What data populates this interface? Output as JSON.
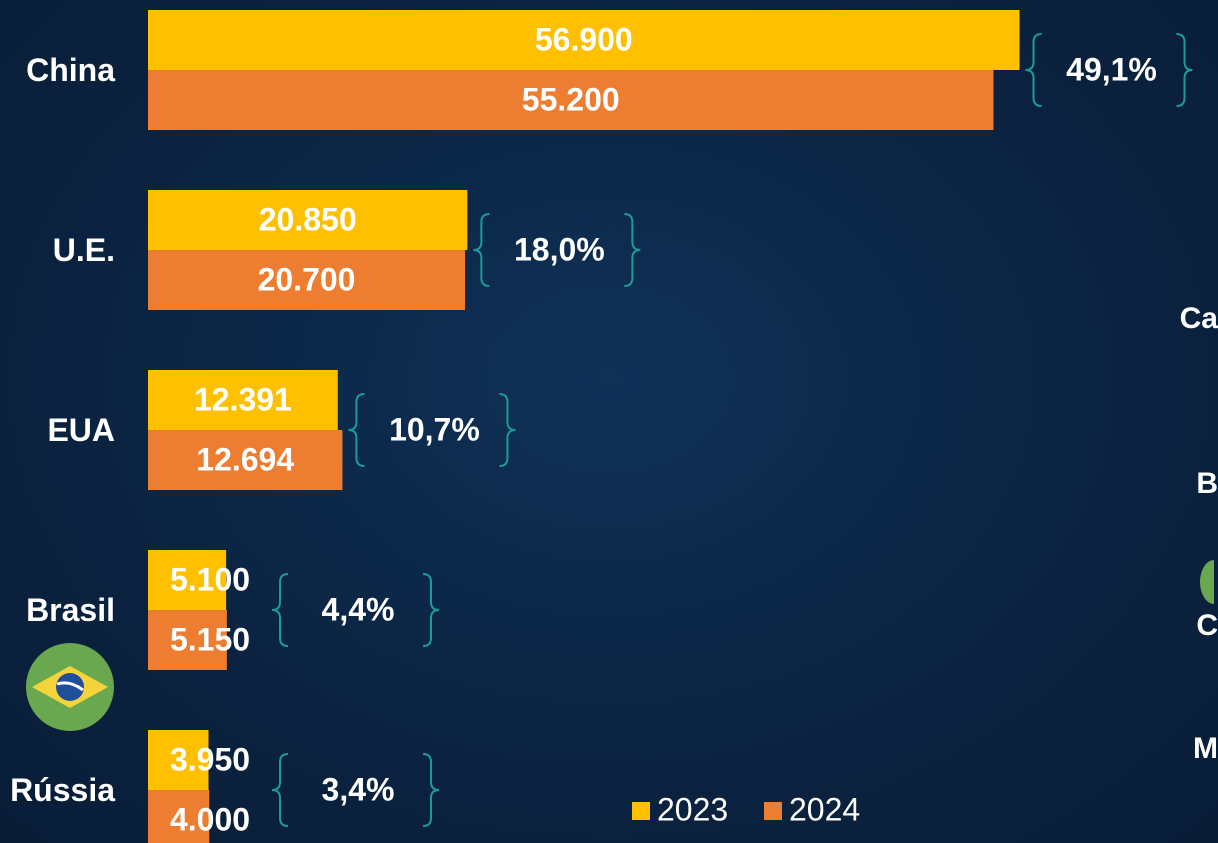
{
  "chart_data": {
    "type": "bar",
    "orientation": "horizontal",
    "categories": [
      "China",
      "U.E.",
      "EUA",
      "Brasil",
      "Rússia"
    ],
    "series": [
      {
        "name": "2023",
        "color": "#FFC000",
        "values": [
          56900,
          20850,
          12391,
          5100,
          3950
        ],
        "value_labels": [
          "56.900",
          "20.850",
          "12.391",
          "5.100",
          "3.950"
        ]
      },
      {
        "name": "2024",
        "color": "#ED7D31",
        "values": [
          55200,
          20700,
          12694,
          5150,
          4000
        ],
        "value_labels": [
          "55.200",
          "20.700",
          "12.694",
          "5.150",
          "4.000"
        ]
      }
    ],
    "shares": [
      {
        "value": 49.1,
        "label": "49,1%"
      },
      {
        "value": 18.0,
        "label": "18,0%"
      },
      {
        "value": 10.7,
        "label": "10,7%"
      },
      {
        "value": 4.4,
        "label": "4,4%"
      },
      {
        "value": 3.4,
        "label": "3,4%"
      }
    ],
    "xlim": [
      0,
      60000
    ],
    "legend": "bottom",
    "side_fragments": [
      "Ca",
      "B",
      "C",
      "M"
    ]
  }
}
